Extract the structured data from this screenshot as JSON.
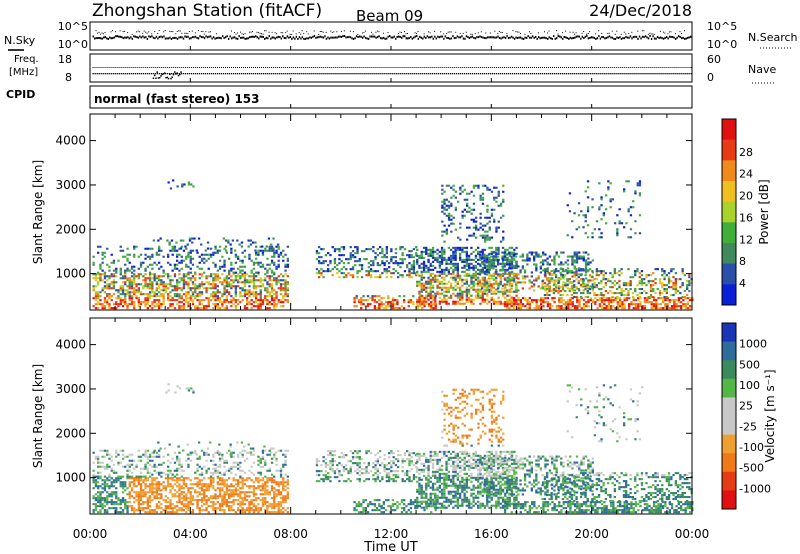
{
  "header": {
    "title": "Zhongshan Station (fitACF)",
    "beam": "Beam 09",
    "date": "24/Dec/2018"
  },
  "top_panel": {
    "left_label": "N.Sky",
    "right_label": "N.Search",
    "left_ticks": [
      "10^5",
      "10^0"
    ],
    "right_ticks": [
      "10^5",
      "10^0"
    ]
  },
  "freq_panel": {
    "left_label_1": "Freq.",
    "left_label_2": "[MHz]",
    "right_label": "Nave",
    "left_ticks": [
      "18",
      "8"
    ],
    "right_ticks": [
      "60",
      "0"
    ],
    "cpid_label": "CPID",
    "cpid_text": "normal (fast stereo) 153"
  },
  "colors": {
    "power": [
      "#0a1fd8",
      "#2a4fa8",
      "#3f8a5a",
      "#3fae3a",
      "#a8d42a",
      "#f0c020",
      "#f08a1a",
      "#e83a14",
      "#e01010"
    ],
    "velocity": [
      "#1a36b8",
      "#2e6c9c",
      "#3b8a5e",
      "#55b648",
      "#c8c8c8",
      "#c8c8c8",
      "#f0a030",
      "#f07a18",
      "#e63c14",
      "#e01010"
    ]
  },
  "chart_data": [
    {
      "type": "heatmap",
      "name": "power",
      "xlabel": "",
      "ylabel": "Slant Range [km]",
      "xlim": [
        0,
        24
      ],
      "ylim": [
        180,
        4600
      ],
      "yticks": [
        1000,
        2000,
        3000,
        4000
      ],
      "colorbar": {
        "label": "Power [dB]",
        "ticks": [
          "4",
          "8",
          "12",
          "16",
          "20",
          "24",
          "28"
        ],
        "range": [
          0,
          30
        ]
      }
    },
    {
      "type": "heatmap",
      "name": "velocity",
      "xlabel": "Time UT",
      "ylabel": "Slant Range [km]",
      "xlim": [
        0,
        24
      ],
      "ylim": [
        180,
        4600
      ],
      "xticks": [
        "00:00",
        "04:00",
        "08:00",
        "12:00",
        "16:00",
        "20:00",
        "00:00"
      ],
      "yticks": [
        1000,
        2000,
        3000,
        4000
      ],
      "colorbar": {
        "label": "Velocity [m s⁻¹]",
        "ticks": [
          "1000",
          "500",
          "100",
          "25",
          "-25",
          "-100",
          "-500",
          "-1000"
        ]
      }
    }
  ]
}
